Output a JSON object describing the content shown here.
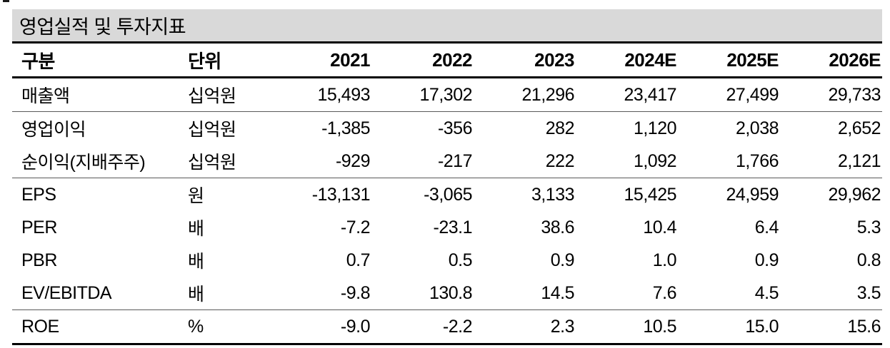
{
  "title_bar": {
    "title": "영업실적 및 투자지표"
  },
  "table": {
    "headers": [
      "구분",
      "단위",
      "2021",
      "2022",
      "2023",
      "2024E",
      "2025E",
      "2026E"
    ],
    "rows": [
      [
        "매출액",
        "십억원",
        "15,493",
        "17,302",
        "21,296",
        "23,417",
        "27,499",
        "29,733"
      ],
      [
        "영업이익",
        "십억원",
        "-1,385",
        "-356",
        "282",
        "1,120",
        "2,038",
        "2,652"
      ],
      [
        "순이익(지배주주)",
        "십억원",
        "-929",
        "-217",
        "222",
        "1,092",
        "1,766",
        "2,121"
      ],
      [
        "EPS",
        "원",
        "-13,131",
        "-3,065",
        "3,133",
        "15,425",
        "24,959",
        "29,962"
      ],
      [
        "PER",
        "배",
        "-7.2",
        "-23.1",
        "38.6",
        "10.4",
        "6.4",
        "5.3"
      ],
      [
        "PBR",
        "배",
        "0.7",
        "0.5",
        "0.9",
        "1.0",
        "0.9",
        "0.8"
      ],
      [
        "EV/EBITDA",
        "배",
        "-9.8",
        "130.8",
        "14.5",
        "7.6",
        "4.5",
        "3.5"
      ],
      [
        "ROE",
        "%",
        "-9.0",
        "-2.2",
        "2.3",
        "10.5",
        "15.0",
        "15.6"
      ]
    ]
  },
  "colors": {
    "title_bg": "#d9d9d9",
    "heavy_rule": "#000000",
    "light_rule": "#595959",
    "text": "#000000"
  }
}
